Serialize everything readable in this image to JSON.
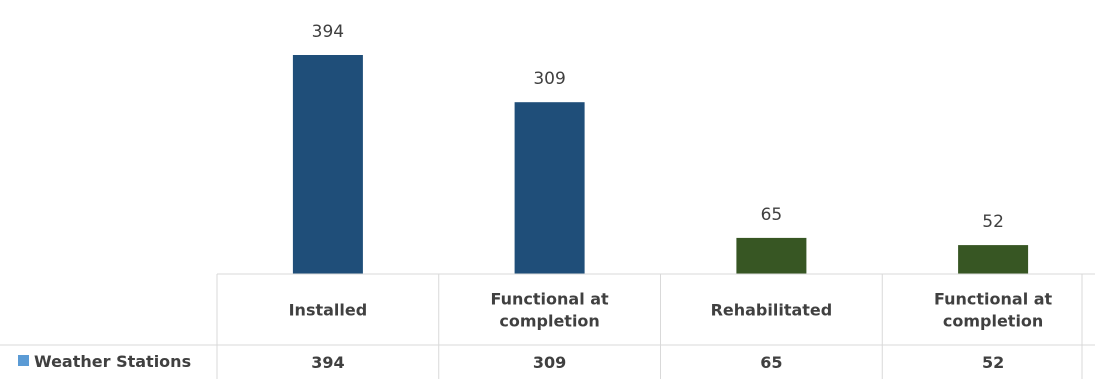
{
  "chart_data": {
    "type": "bar",
    "categories": [
      [
        "Installed"
      ],
      [
        "Functional at",
        "completion"
      ],
      [
        "Rehabilitated"
      ],
      [
        "Functional at",
        "completion"
      ]
    ],
    "series": [
      {
        "name": "Weather Stations",
        "values": [
          394,
          309,
          65,
          52
        ]
      }
    ],
    "value_labels": [
      "394",
      "309",
      "65",
      "52"
    ],
    "table_values": [
      "394",
      "309",
      "65",
      "52"
    ],
    "bar_colors": [
      "#1f4e79",
      "#1f4e79",
      "#375623",
      "#375623"
    ],
    "legend_color": "#5b9bd5",
    "ylim": [
      0,
      394
    ],
    "data_table": true,
    "legend": "in data table",
    "grid": false
  }
}
